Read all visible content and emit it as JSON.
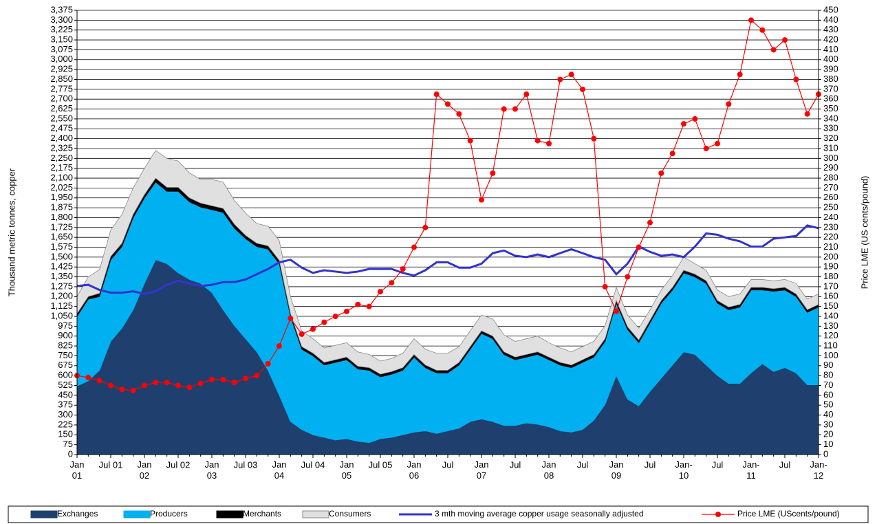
{
  "chart_data": {
    "type": "area",
    "y_label": "Thousand metric tonnes, copper",
    "y2_label": "Price LME (US cents/pound)",
    "categories": [
      "Jan\n01",
      null,
      null,
      "Jul 01",
      null,
      null,
      "Jan\n02",
      null,
      null,
      "Jul 02",
      null,
      null,
      "Jan\n03",
      null,
      null,
      "Jul 03",
      null,
      null,
      "Jan\n04",
      null,
      null,
      "Jul 04",
      null,
      null,
      "Jan\n05",
      null,
      null,
      "Jul 05",
      null,
      null,
      "Jan\n06",
      null,
      null,
      "Jul",
      null,
      null,
      "Jan\n07",
      null,
      null,
      "Jul",
      null,
      null,
      "Jan\n08",
      null,
      null,
      "Jul",
      null,
      null,
      "Jan\n09",
      null,
      null,
      "Jul",
      null,
      null,
      "Jan-\n10",
      null,
      null,
      "Jul",
      null,
      null,
      "Jan-\n11",
      null,
      null,
      "Jul",
      null,
      null,
      "Jan-\n12"
    ],
    "series": [
      {
        "name": "Exchanges",
        "type": "area",
        "color": "#1f3f6e",
        "values": [
          520,
          560,
          640,
          860,
          960,
          1100,
          1300,
          1480,
          1450,
          1380,
          1330,
          1300,
          1230,
          1100,
          980,
          880,
          780,
          640,
          450,
          250,
          190,
          150,
          130,
          110,
          120,
          100,
          90,
          120,
          130,
          150,
          170,
          180,
          160,
          180,
          200,
          250,
          270,
          250,
          220,
          220,
          240,
          230,
          210,
          180,
          170,
          190,
          260,
          380,
          600,
          420,
          370,
          480,
          580,
          680,
          780,
          760,
          680,
          600,
          540,
          540,
          620,
          690,
          630,
          660,
          620,
          530,
          530
        ]
      },
      {
        "name": "Producers",
        "type": "area",
        "color": "#00b0f0",
        "values": [
          530,
          620,
          560,
          620,
          620,
          700,
          650,
          590,
          550,
          620,
          590,
          580,
          630,
          740,
          740,
          760,
          800,
          920,
          1000,
          800,
          610,
          600,
          550,
          590,
          600,
          550,
          550,
          470,
          480,
          490,
          570,
          480,
          460,
          440,
          480,
          550,
          650,
          630,
          540,
          500,
          500,
          530,
          510,
          500,
          490,
          510,
          480,
          480,
          550,
          530,
          480,
          520,
          570,
          570,
          600,
          590,
          620,
          550,
          560,
          580,
          630,
          560,
          610,
          590,
          580,
          550,
          590
        ]
      },
      {
        "name": "Merchants",
        "type": "area",
        "color": "#000000",
        "values": [
          20,
          20,
          25,
          25,
          25,
          25,
          25,
          30,
          30,
          30,
          30,
          30,
          30,
          30,
          30,
          25,
          25,
          25,
          25,
          20,
          20,
          20,
          20,
          20,
          20,
          20,
          20,
          20,
          20,
          20,
          20,
          20,
          20,
          20,
          20,
          20,
          20,
          20,
          20,
          20,
          20,
          20,
          20,
          20,
          20,
          20,
          20,
          20,
          20,
          20,
          20,
          20,
          20,
          20,
          20,
          20,
          20,
          20,
          20,
          20,
          20,
          20,
          20,
          20,
          20,
          20,
          20
        ]
      },
      {
        "name": "Consumers",
        "type": "area",
        "color": "#e0e0e0",
        "values": [
          130,
          150,
          180,
          200,
          220,
          200,
          200,
          210,
          220,
          200,
          190,
          180,
          200,
          200,
          180,
          170,
          150,
          150,
          150,
          130,
          120,
          110,
          110,
          110,
          110,
          110,
          100,
          100,
          100,
          110,
          120,
          120,
          130,
          130,
          120,
          120,
          120,
          130,
          130,
          120,
          120,
          120,
          110,
          110,
          100,
          100,
          100,
          100,
          100,
          90,
          90,
          80,
          80,
          90,
          100,
          80,
          80,
          80,
          80,
          80,
          60,
          60,
          60,
          60,
          80,
          80,
          80
        ]
      },
      {
        "name": "3 mth moving average copper usage seasonally adjusted",
        "type": "line",
        "color": "#3333cc",
        "values": [
          1280,
          1290,
          1250,
          1230,
          1230,
          1240,
          1220,
          1240,
          1290,
          1320,
          1300,
          1280,
          1290,
          1310,
          1310,
          1330,
          1370,
          1410,
          1460,
          1480,
          1420,
          1380,
          1400,
          1390,
          1380,
          1390,
          1410,
          1410,
          1410,
          1380,
          1360,
          1400,
          1460,
          1460,
          1420,
          1420,
          1450,
          1530,
          1550,
          1510,
          1500,
          1520,
          1500,
          1530,
          1560,
          1530,
          1500,
          1480,
          1370,
          1450,
          1580,
          1540,
          1510,
          1520,
          1500,
          1580,
          1680,
          1670,
          1640,
          1620,
          1580,
          1580,
          1640,
          1650,
          1660,
          1740,
          1720
        ]
      },
      {
        "name": "Price LME  (UScents/pound)",
        "type": "line",
        "markers": true,
        "axis": "y2",
        "color": "#ff0000",
        "values": [
          80,
          78,
          75,
          70,
          66,
          65,
          70,
          73,
          73,
          70,
          68,
          72,
          76,
          76,
          73,
          77,
          80,
          92,
          110,
          138,
          122,
          127,
          134,
          140,
          145,
          152,
          150,
          165,
          174,
          188,
          210,
          230,
          365,
          355,
          345,
          318,
          258,
          285,
          350,
          350,
          365,
          318,
          315,
          380,
          385,
          370,
          320,
          170,
          145,
          180,
          210,
          235,
          285,
          305,
          335,
          340,
          310,
          315,
          355,
          385,
          440,
          430,
          410,
          420,
          380,
          345,
          365
        ]
      }
    ],
    "ylim": [
      0,
      3375
    ],
    "yticks": [
      0,
      75,
      150,
      225,
      300,
      375,
      450,
      525,
      600,
      675,
      750,
      825,
      900,
      975,
      {
        "value": 1050,
        "label": "1,050"
      },
      {
        "value": 1125,
        "label": "1,125"
      },
      {
        "value": 1200,
        "label": "1,200"
      },
      {
        "value": 1275,
        "label": "1,275"
      },
      {
        "value": 1350,
        "label": "1,350"
      },
      {
        "value": 1425,
        "label": "1,425"
      },
      {
        "value": 1500,
        "label": "1,500"
      },
      {
        "value": 1575,
        "label": "1,575"
      },
      {
        "value": 1650,
        "label": "1,650"
      },
      {
        "value": 1725,
        "label": "1,725"
      },
      {
        "value": 1800,
        "label": "1,800"
      },
      {
        "value": 1875,
        "label": "1,875"
      },
      {
        "value": 1950,
        "label": "1,950"
      },
      {
        "value": 2025,
        "label": "2,025"
      },
      {
        "value": 2100,
        "label": "2,100"
      },
      {
        "value": 2175,
        "label": "2,175"
      },
      {
        "value": 2250,
        "label": "2,250"
      },
      {
        "value": 2325,
        "label": "2,325"
      },
      {
        "value": 2400,
        "label": "2,400"
      },
      {
        "value": 2475,
        "label": "2,475"
      },
      {
        "value": 2550,
        "label": "2,550"
      },
      {
        "value": 2625,
        "label": "2,625"
      },
      {
        "value": 2700,
        "label": "2,700"
      },
      {
        "value": 2775,
        "label": "2,775"
      },
      {
        "value": 2850,
        "label": "2,850"
      },
      {
        "value": 2925,
        "label": "2,925"
      },
      {
        "value": 3000,
        "label": "3,000"
      },
      {
        "value": 3075,
        "label": "3,075"
      },
      {
        "value": 3150,
        "label": "3,150"
      },
      {
        "value": 3225,
        "label": "3,225"
      },
      {
        "value": 3300,
        "label": "3,300"
      },
      {
        "value": 3375,
        "label": "3,375"
      }
    ],
    "y2lim": [
      0,
      450
    ],
    "y2ticks": [
      0,
      10,
      20,
      30,
      40,
      50,
      60,
      70,
      80,
      90,
      100,
      110,
      120,
      130,
      140,
      150,
      160,
      170,
      180,
      190,
      200,
      210,
      220,
      230,
      240,
      250,
      260,
      270,
      280,
      290,
      300,
      310,
      320,
      330,
      340,
      350,
      360,
      370,
      380,
      390,
      400,
      410,
      420,
      430,
      440,
      450
    ],
    "grid": true,
    "legend": "bottom"
  }
}
